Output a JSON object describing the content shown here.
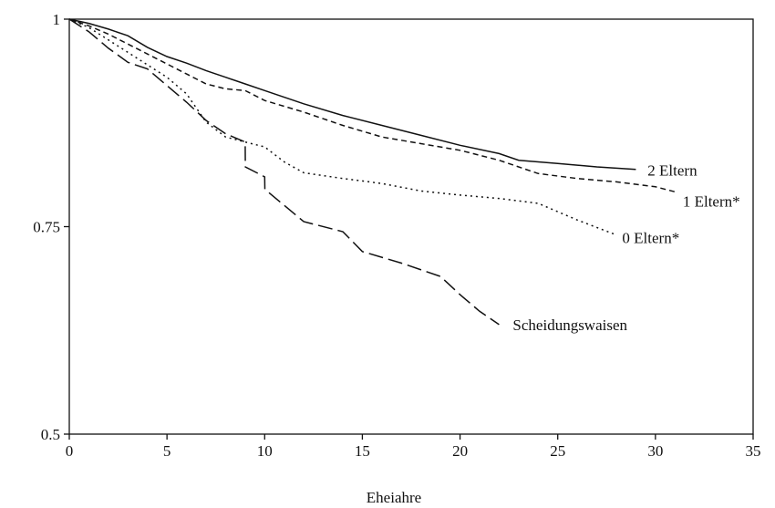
{
  "chart_data": {
    "type": "line",
    "title": "",
    "xlabel": "Eheiahre",
    "ylabel": "",
    "xlim": [
      0,
      35
    ],
    "ylim": [
      0.5,
      1
    ],
    "xticks": [
      "0",
      "5",
      "10",
      "15",
      "20",
      "25",
      "30",
      "35"
    ],
    "yticks": [
      "0.5",
      "0.75",
      "1"
    ],
    "grid": false,
    "legend": "none",
    "series": [
      {
        "name": "2 Eltern",
        "dash": "solid",
        "x": [
          0,
          1,
          2,
          3,
          4,
          5,
          6,
          7,
          8,
          9,
          10,
          12,
          14,
          16,
          18,
          20,
          22,
          23,
          25,
          27,
          29
        ],
        "y": [
          1,
          0.995,
          0.988,
          0.98,
          0.966,
          0.955,
          0.947,
          0.938,
          0.93,
          0.922,
          0.914,
          0.898,
          0.884,
          0.872,
          0.86,
          0.848,
          0.838,
          0.83,
          0.826,
          0.822,
          0.819
        ]
      },
      {
        "name": "1 Eltern*",
        "dash": "6,4",
        "x": [
          0,
          1,
          2,
          3,
          4,
          5,
          6,
          7,
          8,
          9,
          10,
          12,
          14,
          16,
          18,
          20,
          22,
          24,
          26,
          28,
          30,
          31
        ],
        "y": [
          1,
          0.992,
          0.982,
          0.97,
          0.958,
          0.946,
          0.934,
          0.922,
          0.916,
          0.914,
          0.902,
          0.888,
          0.872,
          0.858,
          0.85,
          0.842,
          0.83,
          0.814,
          0.808,
          0.804,
          0.798,
          0.792
        ]
      },
      {
        "name": "0 Eltern*",
        "dash": "2,4",
        "x": [
          0,
          1,
          2,
          3,
          4,
          5,
          6,
          7,
          8,
          9,
          10,
          11,
          12,
          14,
          16,
          18,
          20,
          22,
          24,
          26,
          28
        ],
        "y": [
          1,
          0.99,
          0.975,
          0.96,
          0.945,
          0.93,
          0.91,
          0.876,
          0.858,
          0.852,
          0.846,
          0.828,
          0.815,
          0.808,
          0.802,
          0.793,
          0.788,
          0.784,
          0.778,
          0.758,
          0.74
        ]
      },
      {
        "name": "Scheidungswaisen",
        "dash": "16,6",
        "x": [
          0,
          1,
          2,
          3,
          4,
          5,
          6,
          7,
          8,
          9,
          9.01,
          10,
          10.01,
          12,
          14,
          15,
          17,
          19,
          20,
          21,
          22
        ],
        "y": [
          1,
          0.985,
          0.965,
          0.948,
          0.94,
          0.92,
          0.9,
          0.878,
          0.862,
          0.852,
          0.822,
          0.81,
          0.795,
          0.756,
          0.744,
          0.72,
          0.706,
          0.69,
          0.668,
          0.648,
          0.632
        ]
      }
    ],
    "annotations": [
      {
        "text": "2 Eltern",
        "x": 29.6,
        "y": 0.818
      },
      {
        "text": "1 Eltern*",
        "x": 31.4,
        "y": 0.781
      },
      {
        "text": "0 Eltern*",
        "x": 28.3,
        "y": 0.737
      },
      {
        "text": "Scheidungswaisen",
        "x": 22.7,
        "y": 0.632
      }
    ]
  }
}
